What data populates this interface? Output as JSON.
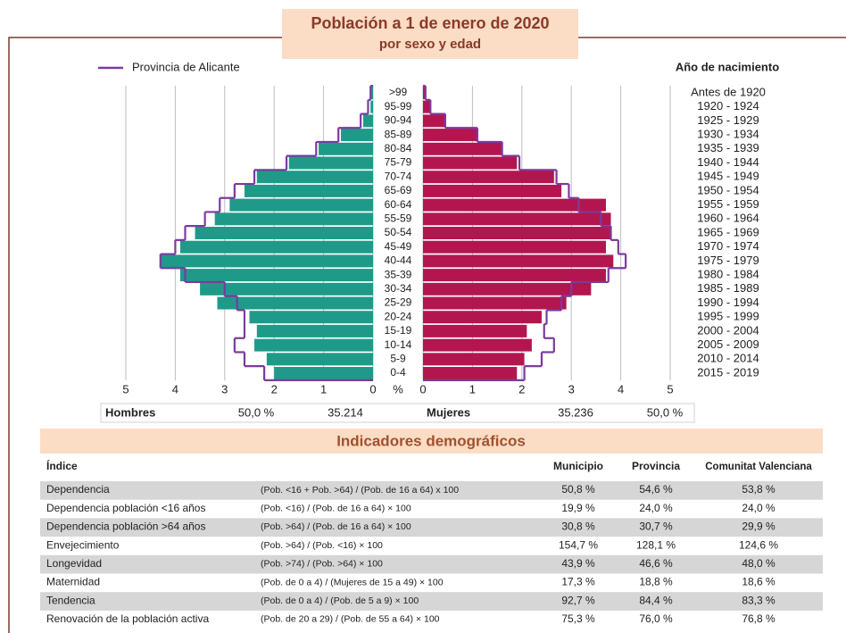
{
  "chart_data": {
    "type": "pyramid",
    "title": "Población a 1 de enero de 2020",
    "subtitle": "por sexo y edad",
    "categories": [
      "0-4",
      "5-9",
      "10-14",
      "15-19",
      "20-24",
      "25-29",
      "30-34",
      "35-39",
      "40-44",
      "45-49",
      "50-54",
      "55-59",
      "60-64",
      "65-69",
      "70-74",
      "75-79",
      "80-84",
      "85-89",
      "90-94",
      "95-99",
      ">99"
    ],
    "birth_years_title": "Año de nacimiento",
    "birth_years": [
      "2015 - 2019",
      "2010 - 2014",
      "2005 - 2009",
      "2000 - 2004",
      "1995 - 1999",
      "1990 - 1994",
      "1985 - 1989",
      "1980 - 1984",
      "1975 - 1979",
      "1970 - 1974",
      "1965 - 1969",
      "1960 - 1964",
      "1955 - 1959",
      "1950 - 1954",
      "1945 - 1949",
      "1940 - 1944",
      "1935 - 1939",
      "1930 - 1934",
      "1925 - 1929",
      "1920 - 1924",
      "Antes de 1920"
    ],
    "series": [
      {
        "name": "Hombres",
        "color": "#1f9a89",
        "values": [
          2.0,
          2.15,
          2.4,
          2.35,
          2.5,
          3.15,
          3.5,
          3.9,
          4.3,
          3.9,
          3.6,
          3.2,
          2.9,
          2.6,
          2.35,
          1.7,
          1.1,
          0.65,
          0.2,
          0.05,
          0.04
        ]
      },
      {
        "name": "Mujeres",
        "color": "#b3164f",
        "values": [
          1.9,
          2.05,
          2.2,
          2.1,
          2.4,
          2.9,
          3.4,
          3.7,
          3.85,
          3.7,
          3.8,
          3.8,
          3.7,
          2.8,
          2.65,
          1.9,
          1.6,
          1.1,
          0.45,
          0.15,
          0.05
        ]
      }
    ],
    "reference": {
      "name": "Provincia de Alicante",
      "color": "#7b3a9e",
      "men": [
        2.2,
        2.6,
        2.8,
        2.6,
        2.6,
        2.75,
        3.0,
        3.8,
        4.3,
        4.0,
        3.8,
        3.4,
        3.1,
        2.8,
        2.4,
        1.75,
        1.15,
        0.7,
        0.25,
        0.1,
        0.05
      ],
      "women": [
        2.05,
        2.4,
        2.65,
        2.45,
        2.5,
        2.8,
        3.0,
        3.75,
        4.1,
        3.95,
        3.8,
        3.6,
        3.15,
        2.95,
        2.7,
        1.95,
        1.6,
        1.1,
        0.45,
        0.15,
        0.05
      ]
    },
    "xlim": [
      0,
      5
    ],
    "xticks": [
      0,
      1,
      2,
      3,
      4,
      5
    ],
    "x_unit": "%",
    "grid": true,
    "summary": {
      "men_label": "Hombres",
      "men_share": "50,0 %",
      "men_total": "35.214",
      "women_label": "Mujeres",
      "women_total": "35.236",
      "women_share": "50,0 %"
    }
  },
  "table": {
    "title": "Indicadores demográficos",
    "header": [
      "Índice",
      "Municipio",
      "Provincia",
      "Comunitat Valenciana"
    ],
    "rows": [
      [
        "Dependencia",
        "(Pob. <16 + Pob. >64) / (Pob. de 16 a 64) x 100",
        "50,8 %",
        "54,6 %",
        "53,8 %"
      ],
      [
        "Dependencia población <16 años",
        "(Pob. <16) / (Pob. de 16 a 64) × 100",
        "19,9 %",
        "24,0 %",
        "24,0 %"
      ],
      [
        "Dependencia población >64 años",
        "(Pob. >64) / (Pob. de 16 a 64) × 100",
        "30,8 %",
        "30,7 %",
        "29,9 %"
      ],
      [
        "Envejecimiento",
        "(Pob. >64) / (Pob. <16) × 100",
        "154,7 %",
        "128,1 %",
        "124,6 %"
      ],
      [
        "Longevidad",
        "(Pob. >74) / (Pob. >64) × 100",
        "43,9 %",
        "46,6 %",
        "48,0 %"
      ],
      [
        "Maternidad",
        "(Pob. de 0 a 4) / (Mujeres de 15 a 49) × 100",
        "17,3 %",
        "18,8 %",
        "18,6 %"
      ],
      [
        "Tendencia",
        "(Pob. de 0 a 4) / (Pob. de 5 a 9) × 100",
        "92,7 %",
        "84,4 %",
        "83,3 %"
      ],
      [
        "Renovación de la población activa",
        "(Pob. de 20 a 29) / (Pob. de 55 a 64) × 100",
        "75,3 %",
        "76,0 %",
        "76,8 %"
      ]
    ]
  }
}
